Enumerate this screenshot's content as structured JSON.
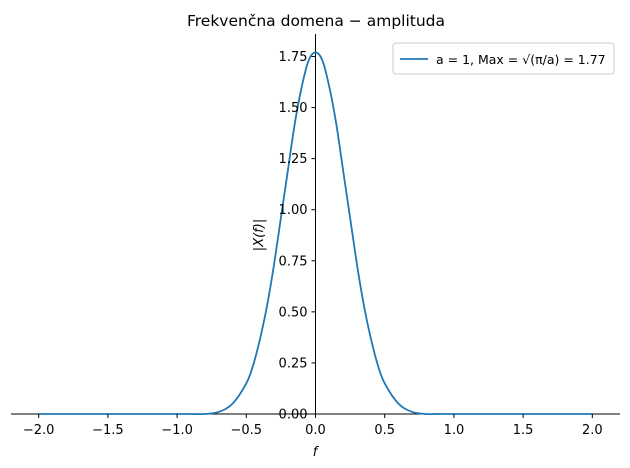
{
  "chart_data": {
    "type": "line",
    "title": "Frekvenčna domena − amplituda",
    "xlabel": "f",
    "ylabel": "|X(f)|",
    "xlim": [
      -2.2,
      2.2
    ],
    "ylim": [
      0,
      1.86
    ],
    "x_ticks": [
      -2.0,
      -1.5,
      -1.0,
      -0.5,
      0.0,
      0.5,
      1.0,
      1.5,
      2.0
    ],
    "x_tick_labels": [
      "−2.0",
      "−1.5",
      "−1.0",
      "−0.5",
      "0.0",
      "0.5",
      "1.0",
      "1.5",
      "2.0"
    ],
    "y_ticks": [
      0.0,
      0.25,
      0.5,
      0.75,
      1.0,
      1.25,
      1.5,
      1.75
    ],
    "y_tick_labels": [
      "0.00",
      "0.25",
      "0.50",
      "0.75",
      "1.00",
      "1.25",
      "1.50",
      "1.75"
    ],
    "grid": false,
    "legend_position": "top-right",
    "series": [
      {
        "name": "a = 1, Max = √(π/a) = 1.77",
        "color": "#1f77b4",
        "x": [
          -2.0,
          -1.8,
          -1.6,
          -1.4,
          -1.2,
          -1.0,
          -0.9,
          -0.8,
          -0.7,
          -0.6,
          -0.5,
          -0.45,
          -0.4,
          -0.35,
          -0.3,
          -0.25,
          -0.2,
          -0.15,
          -0.1,
          -0.05,
          0.0,
          0.05,
          0.1,
          0.15,
          0.2,
          0.25,
          0.3,
          0.35,
          0.4,
          0.45,
          0.5,
          0.6,
          0.7,
          0.8,
          0.9,
          1.0,
          1.2,
          1.4,
          1.6,
          1.8,
          2.0
        ],
        "y": [
          0.0,
          0.0,
          0.0,
          0.0,
          0.0,
          0.0,
          0.0,
          0.0,
          0.01,
          0.05,
          0.15,
          0.24,
          0.37,
          0.53,
          0.73,
          0.96,
          1.19,
          1.42,
          1.6,
          1.73,
          1.77,
          1.73,
          1.6,
          1.42,
          1.19,
          0.96,
          0.73,
          0.53,
          0.37,
          0.24,
          0.15,
          0.05,
          0.01,
          0.0,
          0.0,
          0.0,
          0.0,
          0.0,
          0.0,
          0.0,
          0.0
        ]
      }
    ]
  }
}
